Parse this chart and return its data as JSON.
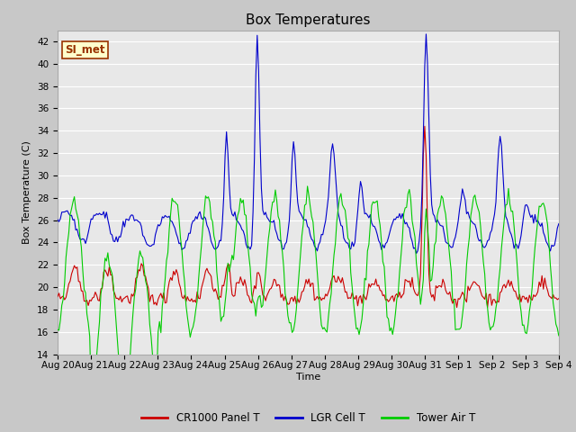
{
  "title": "Box Temperatures",
  "ylabel": "Box Temperature (C)",
  "xlabel": "Time",
  "ylim": [
    14,
    43
  ],
  "yticks": [
    14,
    16,
    18,
    20,
    22,
    24,
    26,
    28,
    30,
    32,
    34,
    36,
    38,
    40,
    42
  ],
  "xtick_labels": [
    "Aug 20",
    "Aug 21",
    "Aug 22",
    "Aug 23",
    "Aug 24",
    "Aug 25",
    "Aug 26",
    "Aug 27",
    "Aug 28",
    "Aug 29",
    "Aug 30",
    "Aug 31",
    "Sep 1",
    "Sep 2",
    "Sep 3",
    "Sep 4"
  ],
  "legend_labels": [
    "CR1000 Panel T",
    "LGR Cell T",
    "Tower Air T"
  ],
  "legend_colors": [
    "#cc0000",
    "#0000cc",
    "#00cc00"
  ],
  "annotation_text": "SI_met",
  "annotation_bg": "#ffffcc",
  "annotation_border": "#993300",
  "plot_bg_color": "#e8e8e8",
  "grid_color": "#ffffff",
  "fig_bg_color": "#c8c8c8",
  "title_fontsize": 11,
  "axis_fontsize": 8,
  "tick_fontsize": 7.5
}
